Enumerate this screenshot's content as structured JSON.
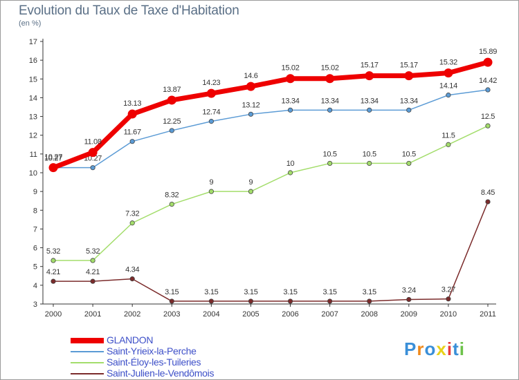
{
  "chart_data": {
    "type": "line",
    "title": "Evolution du Taux de Taxe d'Habitation",
    "subtitle": "(en %)",
    "x": [
      "2000",
      "2001",
      "2002",
      "2003",
      "2004",
      "2005",
      "2006",
      "2007",
      "2008",
      "2009",
      "2010",
      "2011"
    ],
    "ylim": [
      3,
      17
    ],
    "yticks": [
      3,
      4,
      5,
      6,
      7,
      8,
      9,
      10,
      11,
      12,
      13,
      14,
      15,
      16,
      17
    ],
    "grid": false,
    "legend_position": "bottom-left",
    "series": [
      {
        "name": "GLANDON",
        "color": "#ee0000",
        "values": [
          10.27,
          11.08,
          13.13,
          13.87,
          14.23,
          14.6,
          15.02,
          15.02,
          15.17,
          15.17,
          15.32,
          15.89
        ],
        "labels": [
          "10.27",
          "11.08",
          "13.13",
          "13.87",
          "14.23",
          "14.6",
          "15.02",
          "15.02",
          "15.17",
          "15.17",
          "15.32",
          "15.89"
        ]
      },
      {
        "name": "Saint-Yrieix-la-Perche",
        "color": "#5b9bd5",
        "values": [
          10.27,
          10.27,
          11.67,
          12.25,
          12.74,
          13.12,
          13.34,
          13.34,
          13.34,
          13.34,
          14.14,
          14.42
        ],
        "labels": [
          "10.27",
          "10.27",
          "11.67",
          "12.25",
          "12.74",
          "13.12",
          "13.34",
          "13.34",
          "13.34",
          "13.34",
          "14.14",
          "14.42"
        ]
      },
      {
        "name": "Saint-Éloy-les-Tuileries",
        "color": "#a3dd6b",
        "values": [
          5.32,
          5.32,
          7.32,
          8.32,
          9,
          9,
          10,
          10.5,
          10.5,
          10.5,
          11.5,
          12.5
        ],
        "labels": [
          "5.32",
          "5.32",
          "7.32",
          "8.32",
          "9",
          "9",
          "10",
          "10.5",
          "10.5",
          "10.5",
          "11.5",
          "12.5"
        ]
      },
      {
        "name": "Saint-Julien-le-Vendômois",
        "color": "#7b2b2b",
        "values": [
          4.21,
          4.21,
          4.34,
          3.15,
          3.15,
          3.15,
          3.15,
          3.15,
          3.15,
          3.24,
          3.27,
          8.45
        ],
        "labels": [
          "4.21",
          "4.21",
          "4.34",
          "3.15",
          "3.15",
          "3.15",
          "3.15",
          "3.15",
          "3.15",
          "3.24",
          "3.27",
          "8.45"
        ]
      }
    ]
  },
  "logo": {
    "text": "Proxiti",
    "letters": [
      {
        "ch": "P",
        "color": "#3a8fd8"
      },
      {
        "ch": "r",
        "color": "#f08a1c"
      },
      {
        "ch": "o",
        "color": "#3a8fd8"
      },
      {
        "ch": "x",
        "color": "#e8d21a"
      },
      {
        "ch": "i",
        "color": "#e83a3a"
      },
      {
        "ch": "t",
        "color": "#3a8fd8"
      },
      {
        "ch": "i",
        "color": "#6cc24a"
      }
    ]
  }
}
